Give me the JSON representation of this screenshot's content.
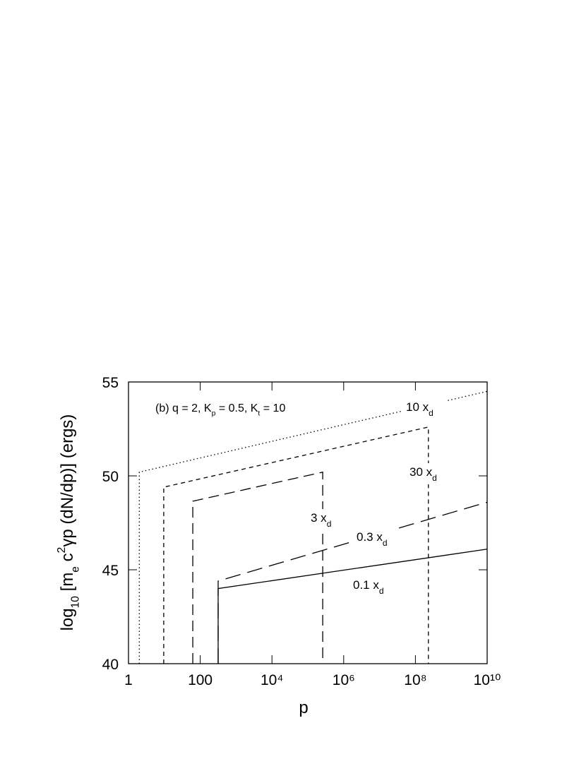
{
  "chart_data": {
    "type": "line",
    "xscale": "log",
    "xlabel": "p",
    "ylabel": [
      {
        "text": "log"
      },
      {
        "sub": "10"
      },
      {
        "text": "  [m"
      },
      {
        "sub": "e"
      },
      {
        "text": " c"
      },
      {
        "sup": "2"
      },
      {
        "text": "γp  (dN/dp)]  (ergs)"
      }
    ],
    "annotation": [
      {
        "text": "(b)  q = 2, K"
      },
      {
        "sub": "p"
      },
      {
        "text": " = 0.5, K"
      },
      {
        "sub": "t"
      },
      {
        "text": " = 10"
      }
    ],
    "xlim": [
      1,
      10000000000
    ],
    "ylim": [
      40,
      55
    ],
    "xticks": [
      1,
      100,
      {
        "value": 10000,
        "label": "10⁴"
      },
      {
        "value": 1000000,
        "label": "10⁶"
      },
      {
        "value": 100000000,
        "label": "10⁸"
      },
      {
        "value": 10000000000,
        "label": "10¹⁰"
      }
    ],
    "yticks": [
      40,
      45,
      50,
      55
    ],
    "color": "#000000",
    "series": [
      {
        "name": "0.1  x",
        "name_sub": "d",
        "linestyle": "solid",
        "x": [
          316,
          316,
          10000000000
        ],
        "values": [
          40,
          44.0,
          46.1
        ]
      },
      {
        "name": "0.3  x",
        "name_sub": "d",
        "linestyle": "long-dash",
        "x": [
          316,
          316,
          10000000000
        ],
        "values": [
          40,
          44.4,
          48.6
        ]
      },
      {
        "name": "3  x",
        "name_sub": "d",
        "linestyle": "dash",
        "x": [
          62,
          62,
          260000,
          260000
        ],
        "values": [
          40,
          48.65,
          50.2,
          40
        ]
      },
      {
        "name": "30  x",
        "name_sub": "d",
        "linestyle": "short-dash",
        "x": [
          9.6,
          9.6,
          230000000,
          230000000
        ],
        "values": [
          40,
          49.4,
          52.6,
          40
        ]
      },
      {
        "name": "10  x",
        "name_sub": "d",
        "linestyle": "dotted",
        "x": [
          2,
          2,
          10000000000
        ],
        "values": [
          40,
          50.2,
          54.5
        ]
      }
    ]
  }
}
